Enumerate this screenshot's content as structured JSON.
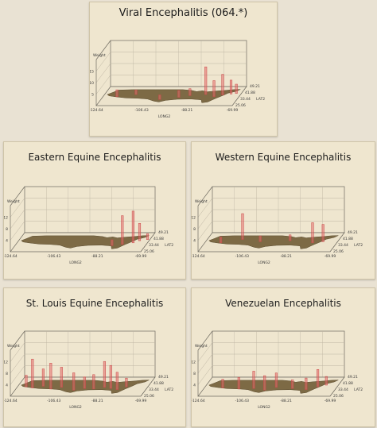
{
  "charts": [
    {
      "title": "Viral Encephalitis (064.*)",
      "chart_data": {
        "type": "bar",
        "title": "Viral Encephalitis (064.*)",
        "ylabel": "Weight",
        "xlabel": "LONG2",
        "zlabel": "LAT2",
        "x_ticks": [
          "-124.64",
          "-106.43",
          "-88.21",
          "-69.99"
        ],
        "z_ticks": [
          "49.21",
          "41.88",
          "33.44",
          "25.06"
        ],
        "y_ticks": [
          "5",
          "10",
          "15"
        ],
        "ylim": [
          0,
          20
        ],
        "xlim": [
          -124.64,
          -69.99
        ],
        "zlim": [
          25.06,
          49.21
        ],
        "bars": [
          {
            "x": -119,
            "z": 36,
            "value": 3
          },
          {
            "x": -112,
            "z": 40,
            "value": 2
          },
          {
            "x": -101,
            "z": 31,
            "value": 2
          },
          {
            "x": -94,
            "z": 35,
            "value": 3
          },
          {
            "x": -90,
            "z": 38,
            "value": 3
          },
          {
            "x": -84,
            "z": 40,
            "value": 12
          },
          {
            "x": -80,
            "z": 36,
            "value": 7
          },
          {
            "x": -77,
            "z": 39,
            "value": 9
          },
          {
            "x": -74,
            "z": 41,
            "value": 6
          },
          {
            "x": -72,
            "z": 42,
            "value": 4
          }
        ]
      }
    },
    {
      "title": "Eastern Equine Encephalitis",
      "chart_data": {
        "type": "bar",
        "title": "Eastern Equine Encephalitis",
        "ylabel": "Weight",
        "xlabel": "LONG2",
        "zlabel": "LAT2",
        "x_ticks": [
          "-124.64",
          "-106.43",
          "-88.21",
          "-69.99"
        ],
        "z_ticks": [
          "49.21",
          "41.88",
          "33.44",
          "25.06"
        ],
        "y_ticks": [
          "4",
          "8",
          "12"
        ],
        "ylim": [
          0,
          16
        ],
        "xlim": [
          -124.64,
          -69.99
        ],
        "zlim": [
          25.06,
          49.21
        ],
        "bars": [
          {
            "x": -84,
            "z": 31,
            "value": 2
          },
          {
            "x": -80,
            "z": 33,
            "value": 10
          },
          {
            "x": -76,
            "z": 36,
            "value": 11
          },
          {
            "x": -74,
            "z": 40,
            "value": 6
          },
          {
            "x": -71,
            "z": 42,
            "value": 2
          }
        ]
      }
    },
    {
      "title": "Western Equine Encephalitis",
      "chart_data": {
        "type": "bar",
        "title": "Western Equine Encephalitis",
        "ylabel": "Weight",
        "xlabel": "LONG2",
        "zlabel": "LAT2",
        "x_ticks": [
          "-124.64",
          "-106.43",
          "-88.21",
          "-69.99"
        ],
        "z_ticks": [
          "49.21",
          "41.88",
          "33.44",
          "25.06"
        ],
        "y_ticks": [
          "4",
          "8",
          "12"
        ],
        "ylim": [
          0,
          16
        ],
        "xlim": [
          -124.64,
          -69.99
        ],
        "zlim": [
          25.06,
          49.21
        ],
        "bars": [
          {
            "x": -118,
            "z": 36,
            "value": 2
          },
          {
            "x": -110,
            "z": 42,
            "value": 9
          },
          {
            "x": -102,
            "z": 38,
            "value": 2
          },
          {
            "x": -90,
            "z": 40,
            "value": 2
          },
          {
            "x": -80,
            "z": 36,
            "value": 7
          },
          {
            "x": -76,
            "z": 38,
            "value": 6
          }
        ]
      }
    },
    {
      "title": "St. Louis Equine Encephalitis",
      "chart_data": {
        "type": "bar",
        "title": "St. Louis Equine Encephalitis",
        "ylabel": "Weight",
        "xlabel": "LONG2",
        "zlabel": "LAT2",
        "x_ticks": [
          "-124.64",
          "-106.43",
          "-88.21",
          "-69.99"
        ],
        "z_ticks": [
          "49.21",
          "41.88",
          "33.44",
          "25.06"
        ],
        "y_ticks": [
          "4",
          "8",
          "12"
        ],
        "ylim": [
          0,
          16
        ],
        "xlim": [
          -124.64,
          -69.99
        ],
        "zlim": [
          25.06,
          49.21
        ],
        "bars": [
          {
            "x": -121,
            "z": 37,
            "value": 4
          },
          {
            "x": -118,
            "z": 35,
            "value": 10
          },
          {
            "x": -114,
            "z": 38,
            "value": 6
          },
          {
            "x": -110,
            "z": 33,
            "value": 9
          },
          {
            "x": -106,
            "z": 36,
            "value": 7
          },
          {
            "x": -100,
            "z": 31,
            "value": 6
          },
          {
            "x": -96,
            "z": 34,
            "value": 4
          },
          {
            "x": -92,
            "z": 33,
            "value": 5
          },
          {
            "x": -88,
            "z": 36,
            "value": 9
          },
          {
            "x": -85,
            "z": 34,
            "value": 8
          },
          {
            "x": -82,
            "z": 32,
            "value": 6
          },
          {
            "x": -79,
            "z": 37,
            "value": 3
          }
        ]
      }
    },
    {
      "title": "Venezuelan Encephalitis",
      "chart_data": {
        "type": "bar",
        "title": "Venezuelan Encephalitis",
        "ylabel": "Weight",
        "xlabel": "LONG2",
        "zlabel": "LAT2",
        "x_ticks": [
          "-124.64",
          "-106.43",
          "-88.21",
          "-69.99"
        ],
        "z_ticks": [
          "49.21",
          "41.88",
          "33.44",
          "25.06"
        ],
        "y_ticks": [
          "4",
          "8",
          "12"
        ],
        "ylim": [
          0,
          16
        ],
        "xlim": [
          -124.64,
          -69.99
        ],
        "zlim": [
          25.06,
          49.21
        ],
        "bars": [
          {
            "x": -117,
            "z": 35,
            "value": 3
          },
          {
            "x": -110,
            "z": 33,
            "value": 4
          },
          {
            "x": -104,
            "z": 34,
            "value": 6
          },
          {
            "x": -99,
            "z": 31,
            "value": 5
          },
          {
            "x": -95,
            "z": 36,
            "value": 5
          },
          {
            "x": -88,
            "z": 34,
            "value": 3
          },
          {
            "x": -82,
            "z": 32,
            "value": 4
          },
          {
            "x": -78,
            "z": 37,
            "value": 6
          },
          {
            "x": -75,
            "z": 40,
            "value": 3
          }
        ]
      }
    }
  ],
  "colors": {
    "bar": "#e46a6a",
    "bar_stroke": "#c94848",
    "map": "#7d6a45",
    "grid": "#bdb4a2",
    "axis": "#6e6a60",
    "label": "#3a3a3a"
  }
}
